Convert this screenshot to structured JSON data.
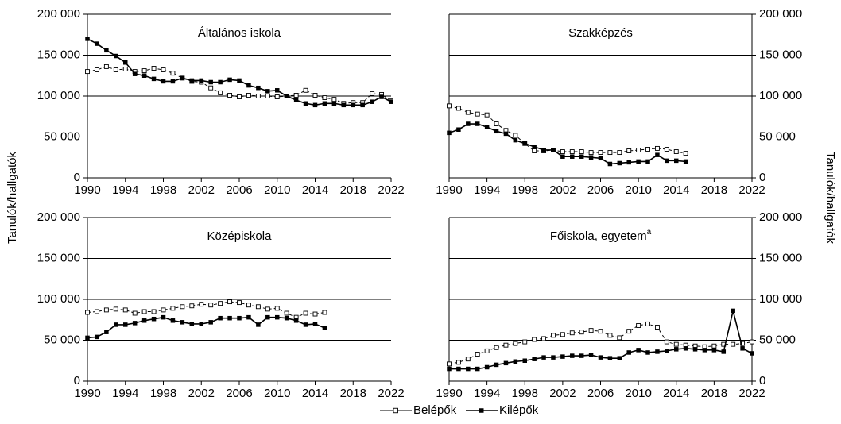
{
  "chart_data": [
    {
      "type": "line",
      "title": "Általános iskola",
      "ylabel": "Tanulók/hallgatók",
      "yaxis_side": "left",
      "xlim": [
        1990,
        2022
      ],
      "xticks": [
        1990,
        1994,
        1998,
        2002,
        2006,
        2010,
        2014,
        2018,
        2022
      ],
      "ylim": [
        0,
        200000
      ],
      "yticks": [
        0,
        {
          "value": 50000,
          "label": "50 000"
        },
        {
          "value": 100000,
          "label": "100 000"
        },
        {
          "value": 150000,
          "label": "150 000"
        },
        {
          "value": 200000,
          "label": "200 000"
        }
      ],
      "grid": true,
      "x": [
        1990,
        1991,
        1992,
        1993,
        1994,
        1995,
        1996,
        1997,
        1998,
        1999,
        2000,
        2001,
        2002,
        2003,
        2004,
        2005,
        2006,
        2007,
        2008,
        2009,
        2010,
        2011,
        2012,
        2013,
        2014,
        2015,
        2016,
        2017,
        2018,
        2019,
        2020,
        2021,
        2022
      ],
      "series": [
        {
          "name": "Belépők",
          "color": "#000000",
          "dashed": true,
          "marker": "open-square",
          "values": [
            130000,
            132000,
            136000,
            132000,
            133000,
            130000,
            131000,
            134000,
            132000,
            128000,
            122000,
            118000,
            117000,
            110000,
            104000,
            101000,
            99000,
            101000,
            100000,
            100000,
            99000,
            100000,
            101000,
            107000,
            101000,
            98000,
            96000,
            91000,
            92000,
            92000,
            103000,
            102000,
            94000
          ]
        },
        {
          "name": "Kilépők",
          "color": "#000000",
          "dashed": false,
          "marker": "filled-square",
          "values": [
            170000,
            164000,
            156000,
            149000,
            141000,
            127000,
            125000,
            121000,
            118000,
            118000,
            122000,
            119000,
            119000,
            117000,
            117000,
            120000,
            119000,
            113000,
            110000,
            106000,
            107000,
            100000,
            95000,
            91000,
            89000,
            91000,
            91000,
            89000,
            89000,
            89000,
            93000,
            99000,
            93000
          ]
        }
      ]
    },
    {
      "type": "line",
      "title": "Szakképzés",
      "ylabel": "Tanulók/hallgatók",
      "yaxis_side": "right",
      "xlim": [
        1990,
        2022
      ],
      "xticks": [
        1990,
        1994,
        1998,
        2002,
        2006,
        2010,
        2014,
        2018,
        2022
      ],
      "ylim": [
        0,
        200000
      ],
      "yticks": [
        0,
        {
          "value": 50000,
          "label": "50 000"
        },
        {
          "value": 100000,
          "label": "100 000"
        },
        {
          "value": 150000,
          "label": "150 000"
        },
        {
          "value": 200000,
          "label": "200 000"
        }
      ],
      "grid": true,
      "x": [
        1990,
        1991,
        1992,
        1993,
        1994,
        1995,
        1996,
        1997,
        1998,
        1999,
        2000,
        2001,
        2002,
        2003,
        2004,
        2005,
        2006,
        2007,
        2008,
        2009,
        2010,
        2011,
        2012,
        2013,
        2014,
        2015
      ],
      "series": [
        {
          "color": "#000000",
          "dashed": true,
          "marker": "open-square",
          "values": [
            88000,
            85000,
            80000,
            78000,
            77000,
            66000,
            58000,
            52000,
            42000,
            33000,
            33000,
            34000,
            32000,
            32000,
            32000,
            31000,
            31000,
            31000,
            31000,
            33000,
            34000,
            35000,
            36000,
            35000,
            32000,
            30000
          ]
        },
        {
          "color": "#000000",
          "dashed": false,
          "marker": "filled-square",
          "values": [
            55000,
            59000,
            66000,
            66000,
            62000,
            57000,
            54000,
            46000,
            42000,
            38000,
            34000,
            34000,
            26000,
            26000,
            26000,
            25000,
            24000,
            17000,
            18000,
            19000,
            20000,
            20000,
            28000,
            21000,
            21000,
            20000
          ]
        }
      ]
    },
    {
      "type": "line",
      "title": "Középiskola",
      "yaxis_side": "left",
      "xlim": [
        1990,
        2022
      ],
      "xticks": [
        1990,
        1994,
        1998,
        2002,
        2006,
        2010,
        2014,
        2018,
        2022
      ],
      "ylim": [
        0,
        200000
      ],
      "yticks": [
        0,
        {
          "value": 50000,
          "label": "50 000"
        },
        {
          "value": 100000,
          "label": "100 000"
        },
        {
          "value": 150000,
          "label": "150 000"
        },
        {
          "value": 200000,
          "label": "200 000"
        }
      ],
      "grid": true,
      "x": [
        1990,
        1991,
        1992,
        1993,
        1994,
        1995,
        1996,
        1997,
        1998,
        1999,
        2000,
        2001,
        2002,
        2003,
        2004,
        2005,
        2006,
        2007,
        2008,
        2009,
        2010,
        2011,
        2012,
        2013,
        2014,
        2015
      ],
      "series": [
        {
          "color": "#000000",
          "dashed": true,
          "marker": "open-square",
          "values": [
            84000,
            85000,
            87000,
            88000,
            87000,
            83000,
            85000,
            85000,
            87000,
            89000,
            91000,
            92000,
            94000,
            93000,
            95000,
            97000,
            96000,
            93000,
            91000,
            88000,
            89000,
            83000,
            78000,
            83000,
            82000,
            84000
          ]
        },
        {
          "color": "#000000",
          "dashed": false,
          "marker": "filled-square",
          "values": [
            53000,
            54000,
            60000,
            69000,
            69000,
            71000,
            74000,
            76000,
            78000,
            74000,
            72000,
            70000,
            70000,
            72000,
            77000,
            77000,
            77000,
            78000,
            69000,
            78000,
            78000,
            77000,
            74000,
            69000,
            70000,
            65000
          ]
        }
      ]
    },
    {
      "type": "line",
      "title": "Főiskola, egyetem",
      "title_sup": "a",
      "yaxis_side": "right",
      "xlim": [
        1990,
        2022
      ],
      "xticks": [
        1990,
        1994,
        1998,
        2002,
        2006,
        2010,
        2014,
        2018,
        2022
      ],
      "ylim": [
        0,
        200000
      ],
      "yticks": [
        0,
        {
          "value": 50000,
          "label": "50 000"
        },
        {
          "value": 100000,
          "label": "100 000"
        },
        {
          "value": 150000,
          "label": "150 000"
        },
        {
          "value": 200000,
          "label": "200 000"
        }
      ],
      "grid": true,
      "x": [
        1990,
        1991,
        1992,
        1993,
        1994,
        1995,
        1996,
        1997,
        1998,
        1999,
        2000,
        2001,
        2002,
        2003,
        2004,
        2005,
        2006,
        2007,
        2008,
        2009,
        2010,
        2011,
        2012,
        2013,
        2014,
        2015,
        2016,
        2017,
        2018,
        2019,
        2020,
        2021,
        2022
      ],
      "series": [
        {
          "color": "#000000",
          "dashed": true,
          "marker": "open-square",
          "values": [
            21000,
            23000,
            27000,
            33000,
            37000,
            41000,
            44000,
            46000,
            48000,
            51000,
            52000,
            56000,
            57000,
            59000,
            60000,
            62000,
            61000,
            56000,
            53000,
            61000,
            68000,
            70000,
            66000,
            48000,
            45000,
            44000,
            43000,
            42000,
            43000,
            45000,
            45000,
            46000,
            48000
          ]
        },
        {
          "color": "#000000",
          "dashed": false,
          "marker": "filled-square",
          "values": [
            15000,
            15000,
            15000,
            15000,
            17000,
            20000,
            22000,
            24000,
            25000,
            27000,
            29000,
            29000,
            30000,
            31000,
            31000,
            32000,
            29000,
            28000,
            28000,
            35000,
            38000,
            35000,
            36000,
            37000,
            39000,
            40000,
            39000,
            38000,
            38000,
            36000,
            86000,
            40000,
            34000
          ]
        }
      ]
    }
  ]
}
